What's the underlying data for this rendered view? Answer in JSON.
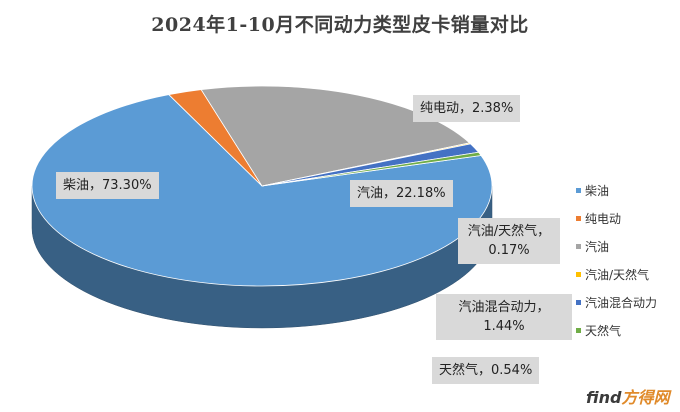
{
  "chart_data": {
    "type": "pie",
    "title": "2024年1-10月不同动力类型皮卡销量对比",
    "slices": [
      {
        "name": "柴油",
        "value": 73.3,
        "label": "柴油，73.30%",
        "color": "#5b9bd5"
      },
      {
        "name": "纯电动",
        "value": 2.38,
        "label": "纯电动，2.38%",
        "color": "#ed7d31"
      },
      {
        "name": "汽油",
        "value": 22.18,
        "label": "汽油，22.18%",
        "color": "#a5a5a5"
      },
      {
        "name": "汽油/天然气",
        "value": 0.17,
        "label": "汽油/天然气，0.17%",
        "color": "#ffc000"
      },
      {
        "name": "汽油混合动力",
        "value": 1.44,
        "label": "汽油混合动力，1.44%",
        "color": "#4472c4"
      },
      {
        "name": "天然气",
        "value": 0.54,
        "label": "天然气，0.54%",
        "color": "#70ad47"
      }
    ],
    "legend_position": "right"
  },
  "watermark": {
    "brand_part": "find",
    "accent_part": "方得网"
  }
}
